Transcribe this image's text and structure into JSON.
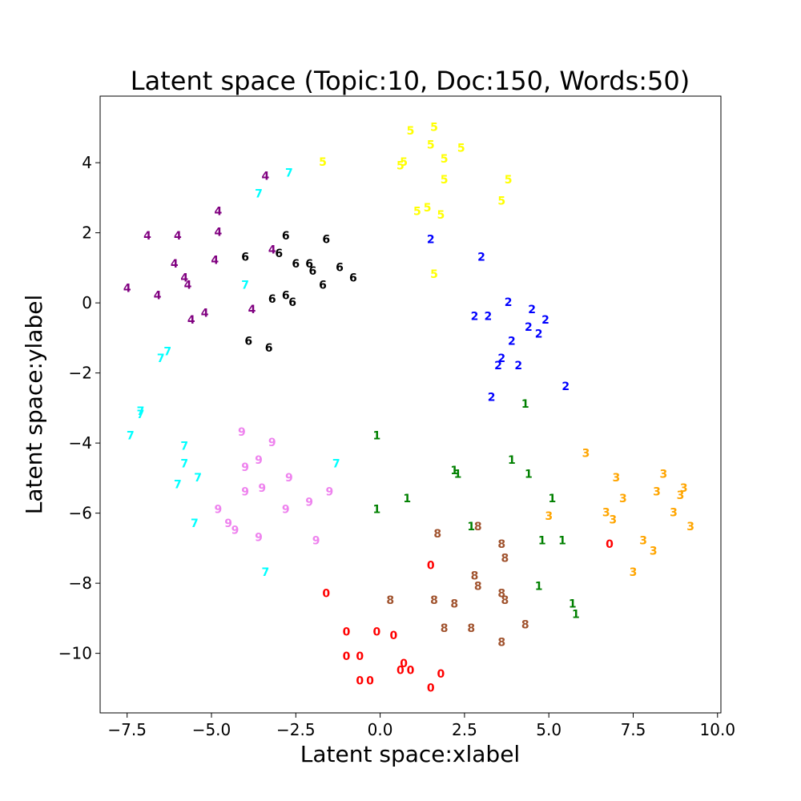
{
  "chart_data": {
    "type": "scatter",
    "title": "Latent space (Topic:10, Doc:150, Words:50)",
    "xlabel": "Latent space:xlabel",
    "ylabel": "Latent space:ylabel",
    "xlim": [
      -8.3,
      10.1
    ],
    "ylim": [
      -11.7,
      5.9
    ],
    "xticks": [
      -7.5,
      -5.0,
      -2.5,
      0.0,
      2.5,
      5.0,
      7.5,
      10.0
    ],
    "xtick_labels": [
      "−7.5",
      "−5.0",
      "−2.5",
      "0.0",
      "2.5",
      "5.0",
      "7.5",
      "10.0"
    ],
    "yticks": [
      4,
      2,
      0,
      -2,
      -4,
      -6,
      -8,
      -10
    ],
    "ytick_labels": [
      "4",
      "2",
      "0",
      "−2",
      "−4",
      "−6",
      "−8",
      "−10"
    ],
    "grid": false,
    "series": [
      {
        "label": "0",
        "color": "#ff0000",
        "points": [
          [
            6.8,
            -6.9
          ],
          [
            1.5,
            -7.5
          ],
          [
            -1.6,
            -8.3
          ],
          [
            -1.0,
            -9.4
          ],
          [
            -0.1,
            -9.4
          ],
          [
            0.4,
            -9.5
          ],
          [
            -1.0,
            -10.1
          ],
          [
            -0.6,
            -10.1
          ],
          [
            0.7,
            -10.3
          ],
          [
            0.9,
            -10.5
          ],
          [
            0.6,
            -10.5
          ],
          [
            1.8,
            -10.6
          ],
          [
            -0.3,
            -10.8
          ],
          [
            -0.6,
            -10.8
          ],
          [
            1.5,
            -11.0
          ]
        ]
      },
      {
        "label": "1",
        "color": "#008000",
        "points": [
          [
            4.3,
            -2.9
          ],
          [
            -0.1,
            -3.8
          ],
          [
            3.9,
            -4.5
          ],
          [
            2.2,
            -4.8
          ],
          [
            2.3,
            -4.9
          ],
          [
            4.4,
            -4.9
          ],
          [
            5.1,
            -5.6
          ],
          [
            0.8,
            -5.6
          ],
          [
            -0.1,
            -5.9
          ],
          [
            2.7,
            -6.4
          ],
          [
            4.8,
            -6.8
          ],
          [
            5.4,
            -6.8
          ],
          [
            4.7,
            -8.1
          ],
          [
            5.7,
            -8.6
          ],
          [
            5.8,
            -8.9
          ]
        ]
      },
      {
        "label": "2",
        "color": "#0000ff",
        "points": [
          [
            1.5,
            1.8
          ],
          [
            3.0,
            1.3
          ],
          [
            3.8,
            0.0
          ],
          [
            4.5,
            -0.2
          ],
          [
            2.8,
            -0.4
          ],
          [
            3.2,
            -0.4
          ],
          [
            4.9,
            -0.5
          ],
          [
            4.4,
            -0.7
          ],
          [
            4.7,
            -0.9
          ],
          [
            3.9,
            -1.1
          ],
          [
            3.6,
            -1.6
          ],
          [
            3.5,
            -1.8
          ],
          [
            4.1,
            -1.8
          ],
          [
            5.5,
            -2.4
          ],
          [
            3.3,
            -2.7
          ]
        ]
      },
      {
        "label": "3",
        "color": "#ffa500",
        "points": [
          [
            6.1,
            -4.3
          ],
          [
            7.0,
            -5.0
          ],
          [
            8.4,
            -4.9
          ],
          [
            9.0,
            -5.3
          ],
          [
            8.2,
            -5.4
          ],
          [
            7.2,
            -5.6
          ],
          [
            8.9,
            -5.5
          ],
          [
            6.7,
            -6.0
          ],
          [
            8.7,
            -6.0
          ],
          [
            5.0,
            -6.1
          ],
          [
            6.9,
            -6.2
          ],
          [
            9.2,
            -6.4
          ],
          [
            7.8,
            -6.8
          ],
          [
            8.1,
            -7.1
          ],
          [
            7.5,
            -7.7
          ]
        ]
      },
      {
        "label": "4",
        "color": "#800080",
        "points": [
          [
            -3.4,
            3.6
          ],
          [
            -4.8,
            2.6
          ],
          [
            -6.9,
            1.9
          ],
          [
            -6.0,
            1.9
          ],
          [
            -4.8,
            2.0
          ],
          [
            -3.2,
            1.5
          ],
          [
            -4.9,
            1.2
          ],
          [
            -6.1,
            1.1
          ],
          [
            -5.8,
            0.7
          ],
          [
            -5.7,
            0.5
          ],
          [
            -7.5,
            0.4
          ],
          [
            -6.6,
            0.2
          ],
          [
            -3.8,
            -0.2
          ],
          [
            -5.2,
            -0.3
          ],
          [
            -5.6,
            -0.5
          ]
        ]
      },
      {
        "label": "5",
        "color": "#ffff00",
        "points": [
          [
            1.6,
            5.0
          ],
          [
            0.9,
            4.9
          ],
          [
            1.5,
            4.5
          ],
          [
            2.4,
            4.4
          ],
          [
            1.9,
            4.1
          ],
          [
            0.7,
            4.0
          ],
          [
            0.6,
            3.9
          ],
          [
            -1.7,
            4.0
          ],
          [
            3.8,
            3.5
          ],
          [
            1.9,
            3.5
          ],
          [
            3.6,
            2.9
          ],
          [
            1.4,
            2.7
          ],
          [
            1.1,
            2.6
          ],
          [
            1.8,
            2.5
          ],
          [
            1.6,
            0.8
          ]
        ]
      },
      {
        "label": "6",
        "color": "#000000",
        "points": [
          [
            -2.8,
            1.9
          ],
          [
            -1.6,
            1.8
          ],
          [
            -4.0,
            1.3
          ],
          [
            -3.0,
            1.4
          ],
          [
            -2.5,
            1.1
          ],
          [
            -2.1,
            1.1
          ],
          [
            -2.0,
            0.9
          ],
          [
            -1.2,
            1.0
          ],
          [
            -0.8,
            0.7
          ],
          [
            -1.7,
            0.5
          ],
          [
            -3.2,
            0.1
          ],
          [
            -2.8,
            0.2
          ],
          [
            -2.6,
            0.0
          ],
          [
            -3.9,
            -1.1
          ],
          [
            -3.3,
            -1.3
          ]
        ]
      },
      {
        "label": "7",
        "color": "#00ffff",
        "points": [
          [
            -2.7,
            3.7
          ],
          [
            -3.6,
            3.1
          ],
          [
            -4.0,
            0.5
          ],
          [
            -6.3,
            -1.4
          ],
          [
            -6.5,
            -1.6
          ],
          [
            -7.1,
            -3.1
          ],
          [
            -7.1,
            -3.2
          ],
          [
            -7.4,
            -3.8
          ],
          [
            -5.8,
            -4.1
          ],
          [
            -5.8,
            -4.6
          ],
          [
            -1.3,
            -4.6
          ],
          [
            -5.4,
            -5.0
          ],
          [
            -6.0,
            -5.2
          ],
          [
            -5.5,
            -6.3
          ],
          [
            -3.4,
            -7.7
          ]
        ]
      },
      {
        "label": "8",
        "color": "#a0522d",
        "points": [
          [
            2.9,
            -6.4
          ],
          [
            1.7,
            -6.6
          ],
          [
            3.6,
            -6.9
          ],
          [
            3.7,
            -7.3
          ],
          [
            2.8,
            -7.8
          ],
          [
            2.9,
            -8.1
          ],
          [
            3.6,
            -8.3
          ],
          [
            3.7,
            -8.5
          ],
          [
            0.3,
            -8.5
          ],
          [
            1.6,
            -8.5
          ],
          [
            2.2,
            -8.6
          ],
          [
            4.3,
            -9.2
          ],
          [
            1.9,
            -9.3
          ],
          [
            2.7,
            -9.3
          ],
          [
            3.6,
            -9.7
          ]
        ]
      },
      {
        "label": "9",
        "color": "#ee82ee",
        "points": [
          [
            -4.1,
            -3.7
          ],
          [
            -3.2,
            -4.0
          ],
          [
            -3.6,
            -4.5
          ],
          [
            -4.0,
            -4.7
          ],
          [
            -2.7,
            -5.0
          ],
          [
            -3.5,
            -5.3
          ],
          [
            -4.0,
            -5.4
          ],
          [
            -1.5,
            -5.4
          ],
          [
            -2.1,
            -5.7
          ],
          [
            -4.8,
            -5.9
          ],
          [
            -2.8,
            -5.9
          ],
          [
            -4.5,
            -6.3
          ],
          [
            -4.3,
            -6.5
          ],
          [
            -3.6,
            -6.7
          ],
          [
            -1.9,
            -6.8
          ]
        ]
      }
    ]
  }
}
